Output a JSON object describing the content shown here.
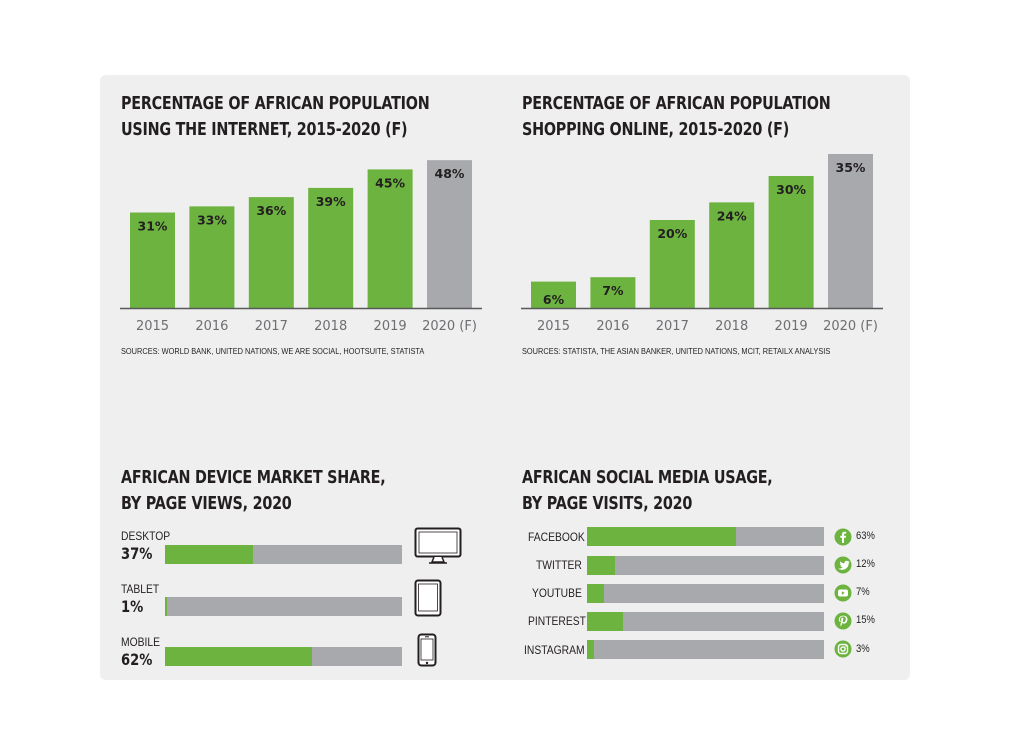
{
  "colors": {
    "green": "#6cb33f",
    "grey": "#a7a9ac",
    "panel": "#efefef",
    "axis": "#58595b"
  },
  "chart_data": [
    {
      "type": "bar",
      "title": "PERCENTAGE OF AFRICAN POPULATION USING THE INTERNET, 2015-2020 (F)",
      "title_lines": [
        "PERCENTAGE OF AFRICAN POPULATION",
        "USING THE INTERNET, 2015-2020 (F)"
      ],
      "categories": [
        "2015",
        "2016",
        "2017",
        "2018",
        "2019",
        "2020 (F)"
      ],
      "values": [
        31,
        33,
        36,
        39,
        45,
        48
      ],
      "value_labels": [
        "31%",
        "33%",
        "36%",
        "39%",
        "45%",
        "48%"
      ],
      "bar_colors": [
        "#6cb33f",
        "#6cb33f",
        "#6cb33f",
        "#6cb33f",
        "#6cb33f",
        "#a7a9ac"
      ],
      "source": "SOURCES: WORLD BANK, UNITED NATIONS, WE ARE SOCIAL, HOOTSUITE, STATISTA",
      "xlabel": "",
      "ylabel": "",
      "ylim": [
        0,
        50
      ],
      "grid": false
    },
    {
      "type": "bar",
      "title": "PERCENTAGE OF AFRICAN POPULATION SHOPPING ONLINE, 2015-2020 (F)",
      "title_lines": [
        "PERCENTAGE OF AFRICAN POPULATION",
        "SHOPPING ONLINE, 2015-2020 (F)"
      ],
      "categories": [
        "2015",
        "2016",
        "2017",
        "2018",
        "2019",
        "2020 (F)"
      ],
      "values": [
        6,
        7,
        20,
        24,
        30,
        35
      ],
      "value_labels": [
        "6%",
        "7%",
        "20%",
        "24%",
        "30%",
        "35%"
      ],
      "bar_colors": [
        "#6cb33f",
        "#6cb33f",
        "#6cb33f",
        "#6cb33f",
        "#6cb33f",
        "#a7a9ac"
      ],
      "source": "SOURCES: STATISTA, THE ASIAN BANKER, UNITED NATIONS, MCIT, RETAILX ANALYSIS",
      "xlabel": "",
      "ylabel": "",
      "ylim": [
        0,
        35
      ],
      "grid": false
    },
    {
      "type": "bar",
      "orientation": "horizontal",
      "title": "AFRICAN DEVICE MARKET SHARE, BY PAGE VIEWS, 2020",
      "title_lines": [
        "AFRICAN DEVICE MARKET SHARE,",
        "BY PAGE VIEWS, 2020"
      ],
      "categories": [
        "DESKTOP",
        "TABLET",
        "MOBILE"
      ],
      "values": [
        37,
        1,
        62
      ],
      "value_labels": [
        "37%",
        "1%",
        "62%"
      ],
      "icons": [
        "desktop-icon",
        "tablet-icon",
        "mobile-icon"
      ],
      "xlim": [
        0,
        100
      ]
    },
    {
      "type": "bar",
      "orientation": "horizontal",
      "title": "AFRICAN SOCIAL MEDIA USAGE, BY PAGE VISITS, 2020",
      "title_lines": [
        "AFRICAN SOCIAL MEDIA USAGE,",
        "BY PAGE VISITS, 2020"
      ],
      "categories": [
        "FACEBOOK",
        "TWITTER",
        "YOUTUBE",
        "PINTEREST",
        "INSTAGRAM"
      ],
      "values": [
        63,
        12,
        7,
        15,
        3
      ],
      "value_labels": [
        "63%",
        "12%",
        "7%",
        "15%",
        "3%"
      ],
      "icons": [
        "facebook-icon",
        "twitter-icon",
        "youtube-icon",
        "pinterest-icon",
        "instagram-icon"
      ],
      "xlim": [
        0,
        100
      ]
    }
  ]
}
